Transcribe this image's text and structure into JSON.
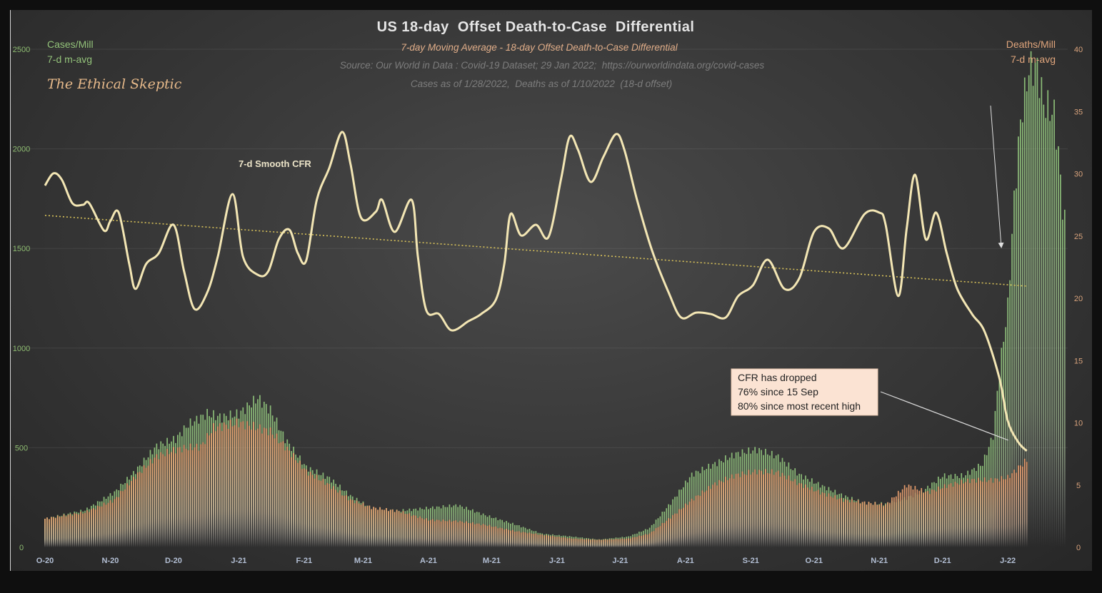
{
  "chart_data": {
    "type": "bar+line",
    "title": "US 18-day  Offset Death-to-Case  Differential",
    "subtitle": "7-day Moving Average - 18-day Offset Death-to-Case Differential",
    "source": "Source: Our World in Data : Covid-19 Dataset; 29 Jan 2022;  https://ourworldindata.org/covid-cases",
    "note": "Cases as of 1/28/2022,  Deaths as of 1/10/2022  (18-d offset)",
    "watermark": "The Ethical Skeptic",
    "left_axis": {
      "label_line1": "Cases/Mill",
      "label_line2": "7-d m-avg",
      "ylim": [
        0,
        2500
      ],
      "ticks": [
        "0",
        "500",
        "1000",
        "1500",
        "2000",
        "2500"
      ],
      "color": "#8fbd72"
    },
    "right_axis": {
      "label_line1": "Deaths/Mill",
      "label_line2": "7-d m-avg",
      "ylim": [
        0,
        40
      ],
      "ticks": [
        "0",
        "5",
        "10",
        "15",
        "20",
        "25",
        "30",
        "35",
        "40"
      ],
      "color": "#d9a37c"
    },
    "x_axis": {
      "range": [
        "2020-10-01",
        "2022-01-31"
      ],
      "ticks": [
        {
          "label": "O-20",
          "date": "2020-10-01"
        },
        {
          "label": "N-20",
          "date": "2020-11-01"
        },
        {
          "label": "D-20",
          "date": "2020-12-01"
        },
        {
          "label": "J-21",
          "date": "2021-01-01"
        },
        {
          "label": "F-21",
          "date": "2021-02-01"
        },
        {
          "label": "M-21",
          "date": "2021-03-01"
        },
        {
          "label": "A-21",
          "date": "2021-04-01"
        },
        {
          "label": "M-21",
          "date": "2021-05-01"
        },
        {
          "label": "J-21",
          "date": "2021-06-01"
        },
        {
          "label": "J-21",
          "date": "2021-07-01"
        },
        {
          "label": "A-21",
          "date": "2021-08-01"
        },
        {
          "label": "S-21",
          "date": "2021-09-01"
        },
        {
          "label": "O-21",
          "date": "2021-10-01"
        },
        {
          "label": "N-21",
          "date": "2021-11-01"
        },
        {
          "label": "D-21",
          "date": "2021-12-01"
        },
        {
          "label": "J-22",
          "date": "2022-01-01"
        }
      ]
    },
    "grid": "horizontal, faint",
    "series": [
      {
        "name": "Cases/Mill 7-d m-avg",
        "kind": "bar",
        "axis": "left",
        "color": "#8fc47a",
        "points": [
          [
            "2020-10-01",
            143
          ],
          [
            "2020-10-20",
            186
          ],
          [
            "2020-11-03",
            276
          ],
          [
            "2020-11-13",
            383
          ],
          [
            "2020-11-23",
            509
          ],
          [
            "2020-12-02",
            544
          ],
          [
            "2020-12-08",
            616
          ],
          [
            "2020-12-17",
            670
          ],
          [
            "2020-12-24",
            652
          ],
          [
            "2021-01-01",
            670
          ],
          [
            "2021-01-10",
            749
          ],
          [
            "2021-01-16",
            688
          ],
          [
            "2021-01-23",
            544
          ],
          [
            "2021-02-02",
            401
          ],
          [
            "2021-02-13",
            347
          ],
          [
            "2021-02-23",
            258
          ],
          [
            "2021-03-05",
            197
          ],
          [
            "2021-03-18",
            183
          ],
          [
            "2021-04-01",
            197
          ],
          [
            "2021-04-15",
            211
          ],
          [
            "2021-04-28",
            161
          ],
          [
            "2021-05-12",
            115
          ],
          [
            "2021-05-25",
            68
          ],
          [
            "2021-06-08",
            54
          ],
          [
            "2021-06-21",
            39
          ],
          [
            "2021-07-05",
            54
          ],
          [
            "2021-07-15",
            97
          ],
          [
            "2021-07-25",
            222
          ],
          [
            "2021-08-04",
            365
          ],
          [
            "2021-08-15",
            419
          ],
          [
            "2021-08-25",
            469
          ],
          [
            "2021-09-04",
            491
          ],
          [
            "2021-09-14",
            455
          ],
          [
            "2021-09-24",
            365
          ],
          [
            "2021-10-04",
            312
          ],
          [
            "2021-10-15",
            258
          ],
          [
            "2021-10-25",
            222
          ],
          [
            "2021-11-04",
            218
          ],
          [
            "2021-11-12",
            240
          ],
          [
            "2021-11-21",
            276
          ],
          [
            "2021-12-01",
            358
          ],
          [
            "2021-12-11",
            358
          ],
          [
            "2021-12-20",
            419
          ],
          [
            "2021-12-25",
            562
          ],
          [
            "2021-12-28",
            885
          ],
          [
            "2022-01-01",
            1207
          ],
          [
            "2022-01-04",
            1745
          ],
          [
            "2022-01-07",
            2139
          ],
          [
            "2022-01-11",
            2400
          ],
          [
            "2022-01-15",
            2407
          ],
          [
            "2022-01-18",
            2228
          ],
          [
            "2022-01-23",
            2174
          ],
          [
            "2022-01-25",
            1978
          ],
          [
            "2022-01-27",
            1709
          ],
          [
            "2022-01-28",
            1637
          ]
        ]
      },
      {
        "name": "Deaths/Mill 7-d m-avg",
        "kind": "bar",
        "axis": "right",
        "color": "#ef9f6c",
        "points": [
          [
            "2020-10-01",
            2.3
          ],
          [
            "2020-10-20",
            2.8
          ],
          [
            "2020-11-03",
            3.8
          ],
          [
            "2020-11-13",
            5.7
          ],
          [
            "2020-11-23",
            7.3
          ],
          [
            "2020-12-03",
            7.9
          ],
          [
            "2020-12-14",
            8.1
          ],
          [
            "2020-12-20",
            9.6
          ],
          [
            "2021-01-01",
            10.0
          ],
          [
            "2021-01-10",
            9.6
          ],
          [
            "2021-01-16",
            9.3
          ],
          [
            "2021-01-23",
            8.1
          ],
          [
            "2021-02-02",
            6.1
          ],
          [
            "2021-02-13",
            5.0
          ],
          [
            "2021-02-23",
            3.8
          ],
          [
            "2021-03-05",
            3.2
          ],
          [
            "2021-03-18",
            2.9
          ],
          [
            "2021-04-01",
            2.2
          ],
          [
            "2021-04-15",
            2.1
          ],
          [
            "2021-04-28",
            1.8
          ],
          [
            "2021-05-12",
            1.3
          ],
          [
            "2021-05-25",
            1.0
          ],
          [
            "2021-06-08",
            0.7
          ],
          [
            "2021-06-21",
            0.6
          ],
          [
            "2021-07-05",
            0.7
          ],
          [
            "2021-07-15",
            1.1
          ],
          [
            "2021-07-25",
            2.4
          ],
          [
            "2021-08-04",
            3.8
          ],
          [
            "2021-08-15",
            5.1
          ],
          [
            "2021-08-25",
            5.8
          ],
          [
            "2021-09-04",
            6.1
          ],
          [
            "2021-09-14",
            6.0
          ],
          [
            "2021-09-24",
            5.1
          ],
          [
            "2021-10-04",
            4.4
          ],
          [
            "2021-10-15",
            3.8
          ],
          [
            "2021-10-25",
            3.6
          ],
          [
            "2021-11-04",
            3.4
          ],
          [
            "2021-11-14",
            5.0
          ],
          [
            "2021-11-24",
            4.4
          ],
          [
            "2021-12-04",
            5.0
          ],
          [
            "2021-12-15",
            5.4
          ],
          [
            "2021-12-25",
            5.4
          ],
          [
            "2022-01-01",
            5.6
          ],
          [
            "2022-01-06",
            6.4
          ],
          [
            "2022-01-10",
            7.0
          ]
        ]
      },
      {
        "name": "7-d Smooth CFR",
        "kind": "line",
        "axis": "left",
        "color": "#f3e6b4",
        "points": [
          [
            "2020-10-01",
            1816
          ],
          [
            "2020-10-05",
            1877
          ],
          [
            "2020-10-09",
            1845
          ],
          [
            "2020-10-14",
            1727
          ],
          [
            "2020-10-19",
            1719
          ],
          [
            "2020-10-22",
            1727
          ],
          [
            "2020-10-29",
            1590
          ],
          [
            "2020-11-01",
            1637
          ],
          [
            "2020-11-05",
            1680
          ],
          [
            "2020-11-10",
            1422
          ],
          [
            "2020-11-13",
            1297
          ],
          [
            "2020-11-18",
            1422
          ],
          [
            "2020-11-24",
            1476
          ],
          [
            "2020-12-01",
            1619
          ],
          [
            "2020-12-06",
            1386
          ],
          [
            "2020-12-11",
            1196
          ],
          [
            "2020-12-17",
            1279
          ],
          [
            "2020-12-22",
            1458
          ],
          [
            "2020-12-29",
            1773
          ],
          [
            "2021-01-03",
            1458
          ],
          [
            "2021-01-10",
            1368
          ],
          [
            "2021-01-15",
            1386
          ],
          [
            "2021-01-20",
            1547
          ],
          [
            "2021-01-25",
            1594
          ],
          [
            "2021-01-29",
            1476
          ],
          [
            "2021-02-02",
            1440
          ],
          [
            "2021-02-07",
            1744
          ],
          [
            "2021-02-13",
            1906
          ],
          [
            "2021-02-19",
            2085
          ],
          [
            "2021-02-23",
            1924
          ],
          [
            "2021-02-28",
            1655
          ],
          [
            "2021-03-07",
            1684
          ],
          [
            "2021-03-10",
            1744
          ],
          [
            "2021-03-16",
            1583
          ],
          [
            "2021-03-24",
            1744
          ],
          [
            "2021-03-27",
            1458
          ],
          [
            "2021-03-31",
            1189
          ],
          [
            "2021-04-06",
            1171
          ],
          [
            "2021-04-12",
            1089
          ],
          [
            "2021-04-20",
            1135
          ],
          [
            "2021-04-26",
            1171
          ],
          [
            "2021-05-03",
            1243
          ],
          [
            "2021-05-07",
            1422
          ],
          [
            "2021-05-10",
            1673
          ],
          [
            "2021-05-15",
            1565
          ],
          [
            "2021-05-22",
            1619
          ],
          [
            "2021-05-28",
            1558
          ],
          [
            "2021-06-03",
            1852
          ],
          [
            "2021-06-07",
            2060
          ],
          [
            "2021-06-11",
            1995
          ],
          [
            "2021-06-17",
            1834
          ],
          [
            "2021-06-23",
            1959
          ],
          [
            "2021-06-29",
            2074
          ],
          [
            "2021-07-03",
            1995
          ],
          [
            "2021-07-09",
            1744
          ],
          [
            "2021-07-16",
            1494
          ],
          [
            "2021-07-24",
            1279
          ],
          [
            "2021-07-30",
            1153
          ],
          [
            "2021-08-06",
            1178
          ],
          [
            "2021-08-13",
            1171
          ],
          [
            "2021-08-20",
            1153
          ],
          [
            "2021-08-26",
            1261
          ],
          [
            "2021-09-02",
            1315
          ],
          [
            "2021-09-09",
            1444
          ],
          [
            "2021-09-17",
            1297
          ],
          [
            "2021-09-24",
            1350
          ],
          [
            "2021-10-01",
            1583
          ],
          [
            "2021-10-08",
            1601
          ],
          [
            "2021-10-15",
            1501
          ],
          [
            "2021-10-25",
            1673
          ],
          [
            "2021-11-01",
            1680
          ],
          [
            "2021-11-04",
            1619
          ],
          [
            "2021-11-10",
            1261
          ],
          [
            "2021-11-14",
            1601
          ],
          [
            "2021-11-18",
            1870
          ],
          [
            "2021-11-23",
            1547
          ],
          [
            "2021-11-28",
            1680
          ],
          [
            "2021-12-03",
            1476
          ],
          [
            "2021-12-08",
            1297
          ],
          [
            "2021-12-15",
            1171
          ],
          [
            "2021-12-21",
            1082
          ],
          [
            "2021-12-28",
            849
          ],
          [
            "2022-01-01",
            634
          ],
          [
            "2022-01-06",
            527
          ],
          [
            "2022-01-10",
            484
          ]
        ]
      },
      {
        "kind": "trendline",
        "style": "dotted",
        "axis": "left",
        "color": "#d8c25a",
        "points": [
          [
            "2020-10-01",
            1666
          ],
          [
            "2022-01-10",
            1311
          ]
        ]
      }
    ],
    "annotations": {
      "series_label": "7-d Smooth CFR",
      "callout": [
        "CFR has dropped",
        "76% since 15 Sep",
        "80% since most recent high"
      ]
    }
  }
}
